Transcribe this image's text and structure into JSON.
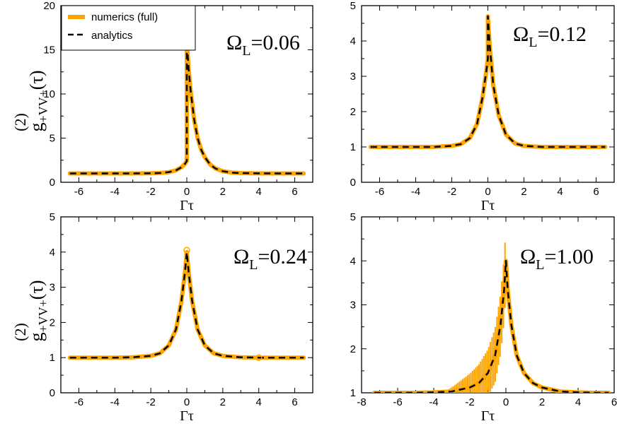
{
  "figure": {
    "ylabel_lines": [
      "(2)",
      "g",
      "+VV+",
      "(τ)"
    ],
    "legend": {
      "entries": [
        "numerics (full)",
        "analytics"
      ]
    },
    "colors": {
      "numerics": "#FFA500",
      "analytics": "#000000"
    }
  },
  "chart_data": [
    {
      "type": "line",
      "annotation": "Ω",
      "annotation_sub": "L",
      "annotation_value": "=0.06",
      "xlabel": "Γτ",
      "ylabel": "g(2)+VV+(τ)",
      "xlim": [
        -7,
        7
      ],
      "ylim": [
        0,
        20
      ],
      "xticks": [
        -6,
        -4,
        -2,
        0,
        2,
        4,
        6
      ],
      "yticks": [
        0,
        5,
        10,
        15,
        20
      ],
      "legend": [
        "numerics (full)",
        "analytics"
      ],
      "series": [
        {
          "name": "numerics (full)",
          "x": [
            -6.5,
            -5,
            -4,
            -3,
            -2,
            -1.5,
            -1,
            -0.6,
            -0.3,
            -0.1,
            0,
            0,
            0.1,
            0.2,
            0.4,
            0.6,
            0.8,
            1.0,
            1.3,
            1.6,
            2,
            2.5,
            3,
            4,
            5,
            6.5
          ],
          "y": [
            1.0,
            1.0,
            1.0,
            1.0,
            1.02,
            1.05,
            1.15,
            1.35,
            1.7,
            2.1,
            2.4,
            16.0,
            12.9,
            10.6,
            7.2,
            5.0,
            3.7,
            2.85,
            2.0,
            1.55,
            1.25,
            1.1,
            1.04,
            1.01,
            1.0,
            1.0
          ]
        },
        {
          "name": "analytics",
          "x": [
            -6.5,
            -5,
            -4,
            -3,
            -2,
            -1.5,
            -1,
            -0.6,
            -0.3,
            -0.1,
            0,
            0,
            0.1,
            0.2,
            0.4,
            0.6,
            0.8,
            1.0,
            1.3,
            1.6,
            2,
            2.5,
            3,
            4,
            5,
            6.5
          ],
          "y": [
            1.0,
            1.0,
            1.0,
            1.0,
            1.02,
            1.05,
            1.15,
            1.35,
            1.7,
            2.1,
            2.4,
            16.0,
            12.9,
            10.6,
            7.2,
            5.0,
            3.7,
            2.85,
            2.0,
            1.55,
            1.25,
            1.1,
            1.04,
            1.01,
            1.0,
            1.0
          ]
        }
      ]
    },
    {
      "type": "line",
      "annotation": "Ω",
      "annotation_sub": "L",
      "annotation_value": "=0.12",
      "xlabel": "Γτ",
      "xlim": [
        -7,
        7
      ],
      "ylim": [
        0,
        5
      ],
      "xticks": [
        -6,
        -4,
        -2,
        0,
        2,
        4,
        6
      ],
      "yticks": [
        0,
        1,
        2,
        3,
        4,
        5
      ],
      "series": [
        {
          "name": "numerics (full)",
          "x": [
            -6.5,
            -5,
            -4,
            -3,
            -2,
            -1.5,
            -1,
            -0.6,
            -0.3,
            -0.1,
            0,
            0,
            0.1,
            0.3,
            0.6,
            1.0,
            1.5,
            2,
            3,
            4,
            5,
            6.5
          ],
          "y": [
            1.0,
            1.0,
            1.0,
            1.0,
            1.03,
            1.08,
            1.25,
            1.65,
            2.4,
            3.1,
            3.5,
            4.7,
            3.9,
            2.75,
            1.9,
            1.35,
            1.1,
            1.03,
            1.0,
            1.0,
            1.0,
            1.0
          ]
        },
        {
          "name": "analytics",
          "x": [
            -6.5,
            -5,
            -4,
            -3,
            -2,
            -1.5,
            -1,
            -0.6,
            -0.3,
            -0.1,
            0,
            0,
            0.1,
            0.3,
            0.6,
            1.0,
            1.5,
            2,
            3,
            4,
            5,
            6.5
          ],
          "y": [
            1.0,
            1.0,
            1.0,
            1.0,
            1.03,
            1.08,
            1.25,
            1.65,
            2.4,
            3.1,
            3.5,
            4.7,
            3.9,
            2.75,
            1.9,
            1.35,
            1.1,
            1.03,
            1.0,
            1.0,
            1.0,
            1.0
          ]
        }
      ]
    },
    {
      "type": "line",
      "annotation": "Ω",
      "annotation_sub": "L",
      "annotation_value": "=0.24",
      "xlabel": "Γτ",
      "ylabel": "g(2)+VV+(τ)",
      "xlim": [
        -7,
        7
      ],
      "ylim": [
        0,
        5
      ],
      "xticks": [
        -6,
        -4,
        -2,
        0,
        2,
        4,
        6
      ],
      "yticks": [
        0,
        1,
        2,
        3,
        4,
        5
      ],
      "markers": [
        {
          "x": 0,
          "y": 4.05
        },
        {
          "x": 4,
          "y": 1.0
        }
      ],
      "series": [
        {
          "name": "numerics (full)",
          "x": [
            -6.5,
            -5,
            -4,
            -3,
            -2,
            -1.5,
            -1,
            -0.6,
            -0.3,
            -0.1,
            0,
            0.1,
            0.3,
            0.6,
            1.0,
            1.5,
            2,
            3,
            4,
            5,
            6.5
          ],
          "y": [
            1.0,
            1.0,
            1.0,
            1.01,
            1.05,
            1.12,
            1.35,
            1.8,
            2.6,
            3.45,
            4.0,
            3.45,
            2.6,
            1.8,
            1.35,
            1.12,
            1.05,
            1.01,
            1.0,
            1.0,
            1.0
          ]
        },
        {
          "name": "analytics",
          "x": [
            -6.5,
            -5,
            -4,
            -3,
            -2,
            -1.5,
            -1,
            -0.6,
            -0.3,
            -0.1,
            0,
            0.1,
            0.3,
            0.6,
            1.0,
            1.5,
            2,
            3,
            4,
            5,
            6.5
          ],
          "y": [
            1.0,
            1.0,
            1.0,
            1.01,
            1.05,
            1.12,
            1.35,
            1.8,
            2.6,
            3.45,
            4.0,
            3.45,
            2.6,
            1.8,
            1.35,
            1.12,
            1.05,
            1.01,
            1.0,
            1.0,
            1.0
          ]
        }
      ]
    },
    {
      "type": "line",
      "annotation": "Ω",
      "annotation_sub": "L",
      "annotation_value": "=1.00",
      "xlabel": "Γτ",
      "xlim": [
        -8,
        6
      ],
      "ylim": [
        1,
        5
      ],
      "xticks": [
        -8,
        -6,
        -4,
        -2,
        0,
        2,
        4,
        6
      ],
      "yticks": [
        1,
        2,
        3,
        4,
        5
      ],
      "series": [
        {
          "name": "numerics (full)",
          "x": [
            -7.3,
            -6,
            -5,
            -4,
            -3,
            -2,
            -1.5,
            -1,
            -0.6,
            -0.3,
            -0.1,
            0,
            0.1,
            0.3,
            0.6,
            1.0,
            1.5,
            2,
            3,
            4,
            5,
            5.7
          ],
          "y": [
            1.0,
            1.0,
            1.0,
            1.01,
            1.03,
            1.12,
            1.22,
            1.45,
            1.85,
            2.55,
            3.35,
            4.0,
            3.35,
            2.55,
            1.85,
            1.45,
            1.22,
            1.12,
            1.03,
            1.01,
            1.0,
            1.0
          ]
        },
        {
          "name": "analytics",
          "x": [
            -7.3,
            -6,
            -5,
            -4,
            -3,
            -2,
            -1.5,
            -1,
            -0.6,
            -0.3,
            -0.1,
            0,
            0.1,
            0.3,
            0.6,
            1.0,
            1.5,
            2,
            3,
            4,
            5,
            5.7
          ],
          "y": [
            1.0,
            1.0,
            1.0,
            1.01,
            1.03,
            1.12,
            1.22,
            1.45,
            1.85,
            2.55,
            3.35,
            4.0,
            3.35,
            2.55,
            1.85,
            1.45,
            1.22,
            1.12,
            1.03,
            1.01,
            1.0,
            1.0
          ]
        }
      ]
    }
  ]
}
